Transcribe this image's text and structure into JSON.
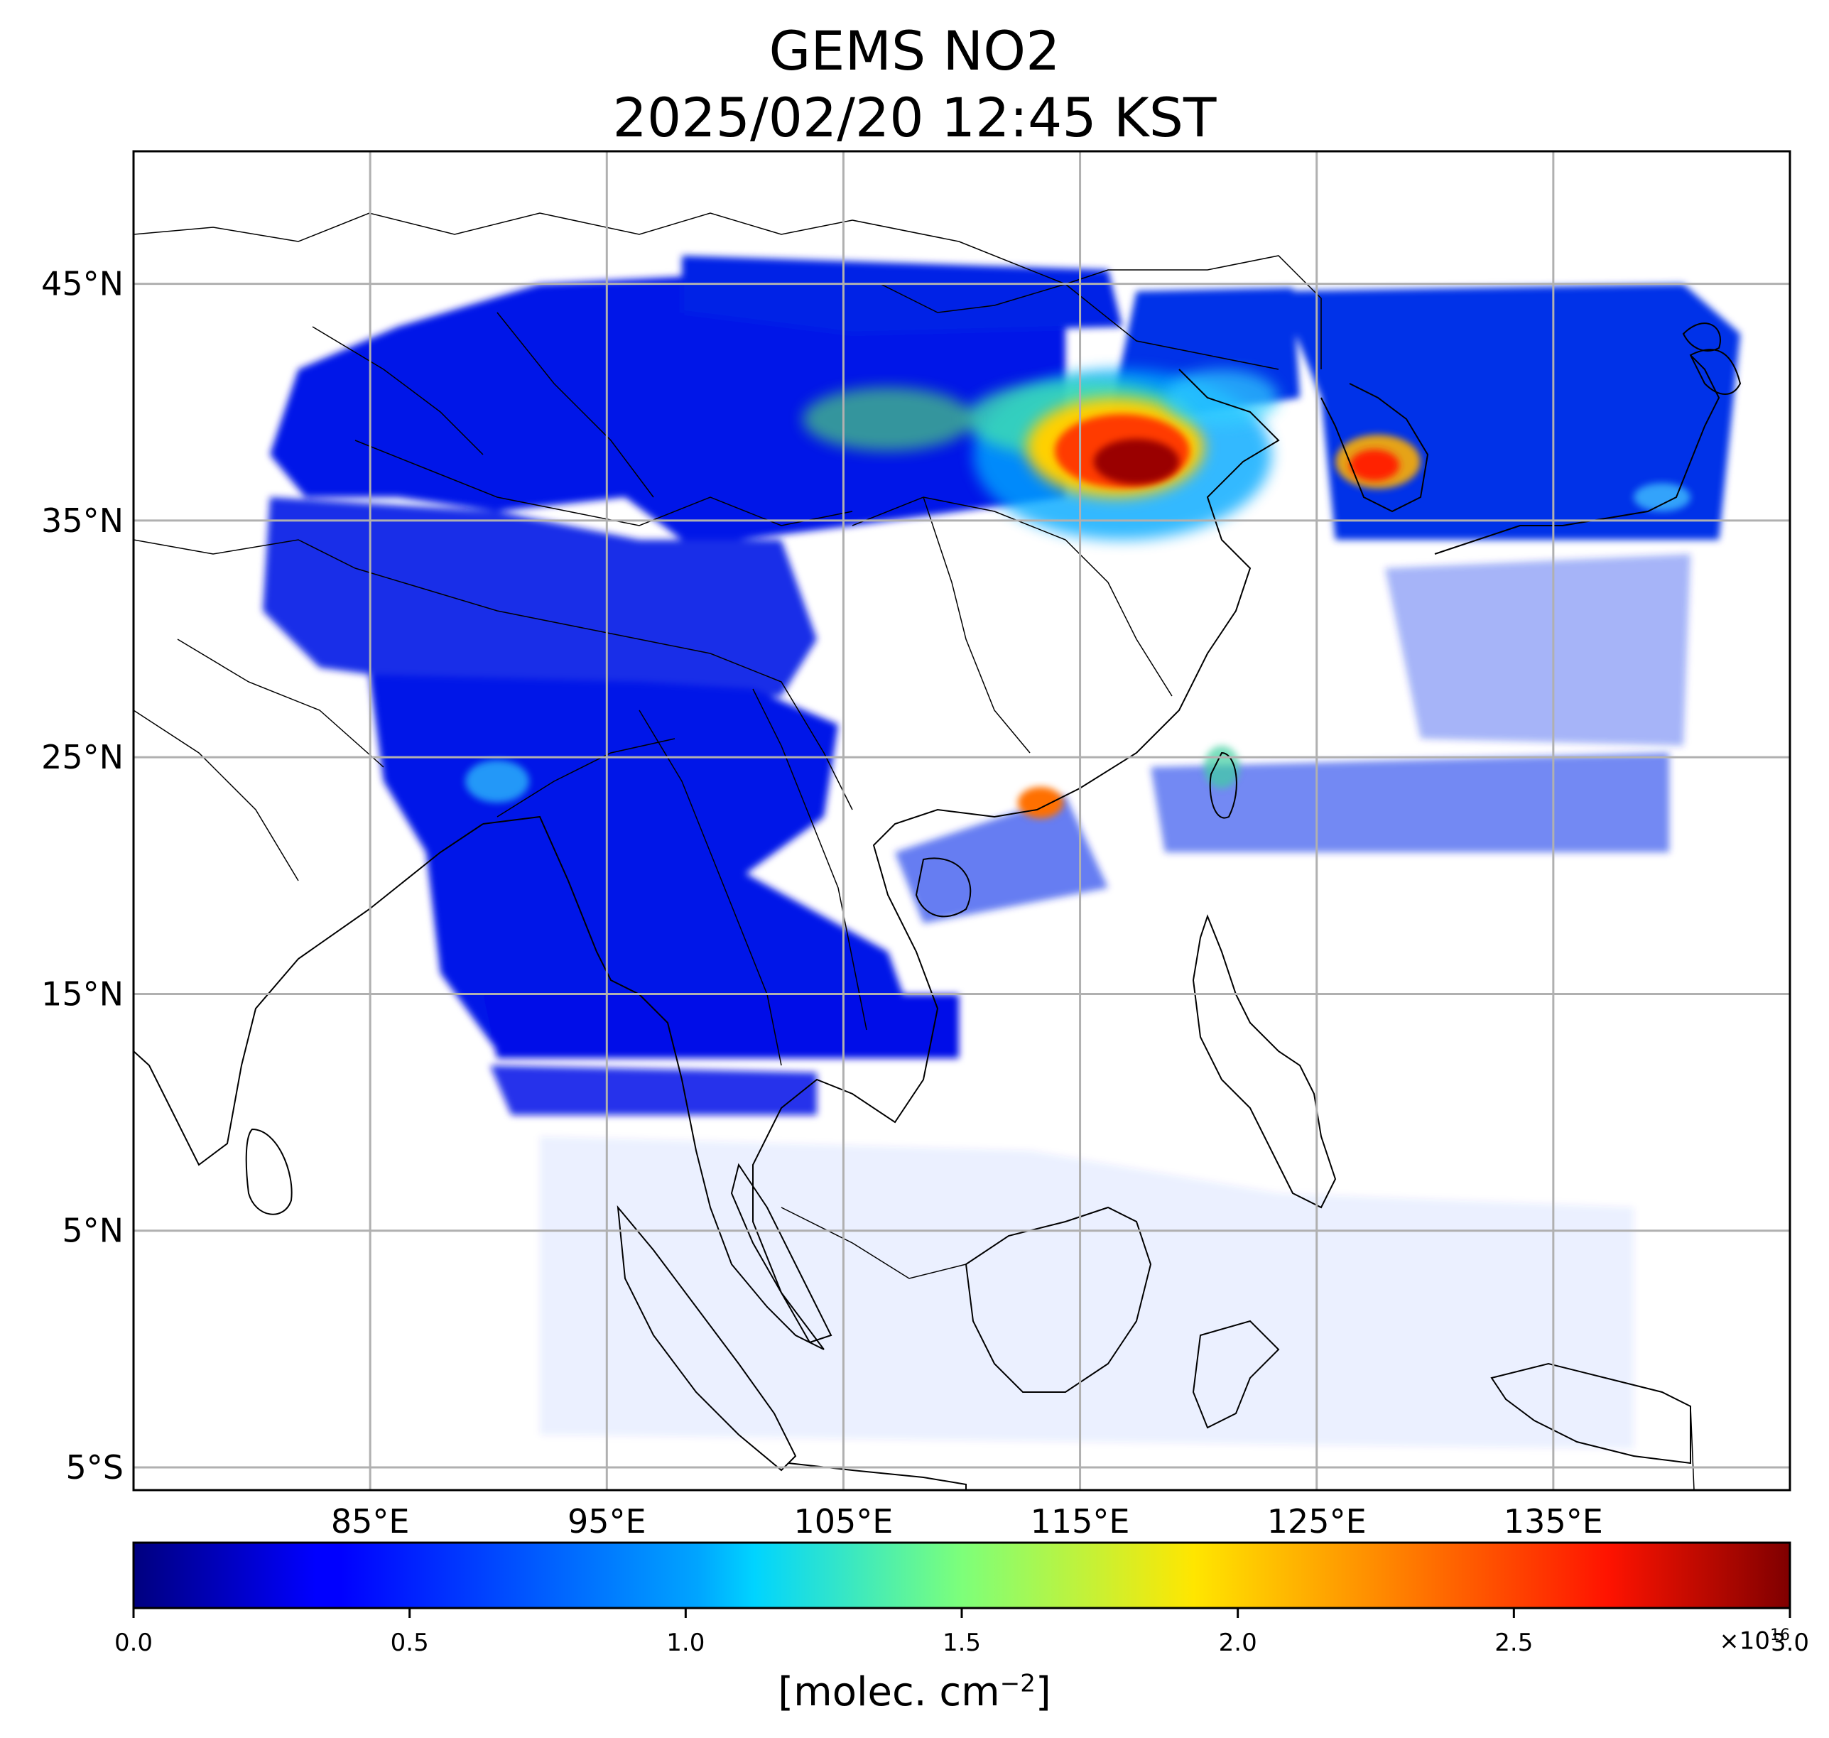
{
  "title": {
    "line1": "GEMS NO2",
    "line2": "2025/02/20 12:45 KST"
  },
  "map": {
    "lon_range": [
      75,
      145
    ],
    "lat_range": [
      -5.96,
      50.6
    ],
    "lat_ticks": [
      {
        "value": 45,
        "label": "45°N"
      },
      {
        "value": 35,
        "label": "35°N"
      },
      {
        "value": 25,
        "label": "25°N"
      },
      {
        "value": 15,
        "label": "15°N"
      },
      {
        "value": 5,
        "label": "5°N"
      },
      {
        "value": -5,
        "label": "5°S"
      }
    ],
    "lon_ticks": [
      {
        "value": 85,
        "label": "85°E"
      },
      {
        "value": 95,
        "label": "95°E"
      },
      {
        "value": 105,
        "label": "105°E"
      },
      {
        "value": 115,
        "label": "115°E"
      },
      {
        "value": 125,
        "label": "125°E"
      },
      {
        "value": 135,
        "label": "135°E"
      }
    ],
    "grid": true
  },
  "colorbar": {
    "colormap": "jet",
    "min": 0.0,
    "max": 3.0,
    "ticks": [
      "0.0",
      "0.5",
      "1.0",
      "1.5",
      "2.0",
      "2.5",
      "3.0"
    ],
    "multiplier_base": "×10",
    "multiplier_exp": "16",
    "unit_text": "[molec. cm",
    "unit_sup": "−2",
    "unit_close": "]"
  },
  "colors": {
    "grid": "#b0b0b0",
    "coast": "#000000",
    "low": "#0010e8",
    "mid": "#00c8ff",
    "high": "#ff2a00",
    "peak": "#8a0000"
  }
}
